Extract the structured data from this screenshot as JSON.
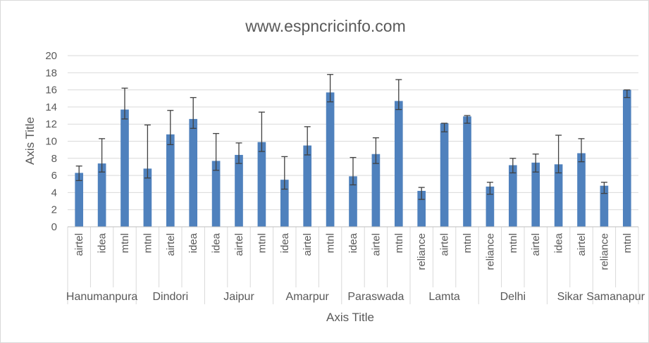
{
  "chart_data": {
    "type": "bar",
    "title": "www.espncricinfo.com",
    "xlabel": "Axis Title",
    "ylabel": "Axis Title",
    "ylim": [
      0,
      20
    ],
    "yticks": [
      "0",
      "2",
      "4",
      "6",
      "8",
      "10",
      "12",
      "14",
      "16",
      "18",
      "20"
    ],
    "grid": true,
    "legend": "none",
    "bar_color": "#4f81bd",
    "groups": [
      {
        "name": "Hanumanpura",
        "bars": [
          {
            "label": "airtel",
            "value": 6.3,
            "err_low": 5.4,
            "err_high": 7.1
          },
          {
            "label": "idea",
            "value": 7.4,
            "err_low": 6.4,
            "err_high": 10.3
          },
          {
            "label": "mtnl",
            "value": 13.7,
            "err_low": 12.6,
            "err_high": 16.2
          }
        ]
      },
      {
        "name": "Dindori",
        "bars": [
          {
            "label": "mtnl",
            "value": 6.8,
            "err_low": 5.7,
            "err_high": 11.9
          },
          {
            "label": "airtel",
            "value": 10.8,
            "err_low": 9.6,
            "err_high": 13.6
          },
          {
            "label": "idea",
            "value": 12.6,
            "err_low": 11.5,
            "err_high": 15.1
          }
        ]
      },
      {
        "name": "Jaipur",
        "bars": [
          {
            "label": "idea",
            "value": 7.7,
            "err_low": 6.6,
            "err_high": 10.9
          },
          {
            "label": "airtel",
            "value": 8.4,
            "err_low": 7.4,
            "err_high": 9.8
          },
          {
            "label": "mtnl",
            "value": 9.9,
            "err_low": 8.8,
            "err_high": 13.4
          }
        ]
      },
      {
        "name": "Amarpur",
        "bars": [
          {
            "label": "idea",
            "value": 5.5,
            "err_low": 4.4,
            "err_high": 8.2
          },
          {
            "label": "airtel",
            "value": 9.5,
            "err_low": 8.4,
            "err_high": 11.7
          },
          {
            "label": "mtnl",
            "value": 15.7,
            "err_low": 14.6,
            "err_high": 17.8
          }
        ]
      },
      {
        "name": "Paraswada",
        "bars": [
          {
            "label": "idea",
            "value": 5.9,
            "err_low": 4.9,
            "err_high": 8.1
          },
          {
            "label": "airtel",
            "value": 8.5,
            "err_low": 7.4,
            "err_high": 10.4
          },
          {
            "label": "mtnl",
            "value": 14.7,
            "err_low": 13.7,
            "err_high": 17.2
          }
        ]
      },
      {
        "name": "Lamta",
        "bars": [
          {
            "label": "reliance",
            "value": 4.2,
            "err_low": 3.2,
            "err_high": 4.6
          },
          {
            "label": "airtel",
            "value": 12.1,
            "err_low": 11.1,
            "err_high": 12.1
          },
          {
            "label": "mtnl",
            "value": 12.9,
            "err_low": 12.1,
            "err_high": 13.0
          }
        ]
      },
      {
        "name": "Delhi",
        "bars": [
          {
            "label": "reliance",
            "value": 4.7,
            "err_low": 3.8,
            "err_high": 5.2
          },
          {
            "label": "mtnl",
            "value": 7.2,
            "err_low": 6.3,
            "err_high": 8.0
          },
          {
            "label": "airtel",
            "value": 7.5,
            "err_low": 6.4,
            "err_high": 8.5
          }
        ]
      },
      {
        "name": "Sikar",
        "bars": [
          {
            "label": "idea",
            "value": 7.3,
            "err_low": 6.3,
            "err_high": 10.7
          },
          {
            "label": "airtel",
            "value": 8.6,
            "err_low": 7.6,
            "err_high": 10.3
          }
        ]
      },
      {
        "name": "Samanapur",
        "bars": [
          {
            "label": "reliance",
            "value": 4.8,
            "err_low": 3.9,
            "err_high": 5.2
          },
          {
            "label": "mtnl",
            "value": 16.0,
            "err_low": 15.1,
            "err_high": 16.0
          }
        ]
      }
    ]
  }
}
